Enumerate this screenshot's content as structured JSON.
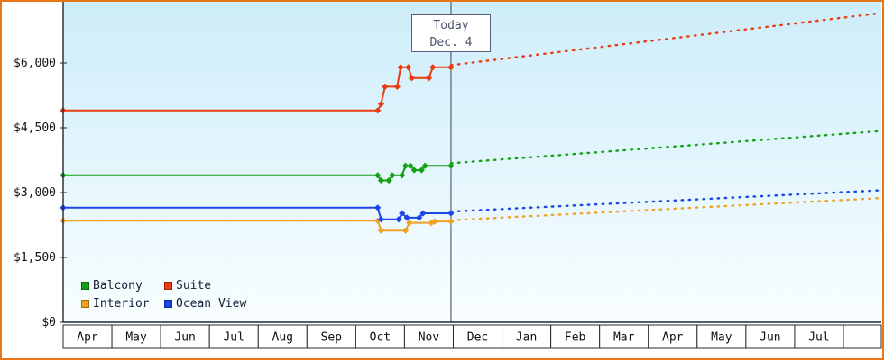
{
  "frame": {
    "border_color": "#e87612"
  },
  "chart_data": {
    "type": "line",
    "title": "",
    "xlabel": "",
    "ylabel": "",
    "ylim": [
      0,
      7400
    ],
    "grid": false,
    "plot": {
      "bg_top": "#cdedfa",
      "bg_bottom": "#f9feff",
      "axis_color": "#1e2836",
      "cell_border_color": "#2a2a2a",
      "tick_label_color": "#111111",
      "month_label_color": "#111111",
      "today_line_color": "#3a4456"
    },
    "y_axis": {
      "ticks": [
        0,
        1500,
        3000,
        4500,
        6000
      ],
      "labels": [
        "$0",
        "$1,500",
        "$3,000",
        "$4,500",
        "$6,000"
      ]
    },
    "x_axis": {
      "months": [
        "Apr",
        "May",
        "Jun",
        "Jul",
        "Aug",
        "Sep",
        "Oct",
        "Nov",
        "Dec",
        "Jan",
        "Feb",
        "Mar",
        "Apr",
        "May",
        "Jun",
        "Jul"
      ]
    },
    "today": {
      "line1": "Today",
      "line2": "Dec. 4",
      "month_index": 7.953
    },
    "series": [
      {
        "name": "Interior",
        "color": "#efa226",
        "history": [
          [
            0,
            2350
          ],
          [
            6.45,
            2350
          ],
          [
            6.52,
            2120
          ],
          [
            7.02,
            2120
          ],
          [
            7.1,
            2300
          ],
          [
            7.55,
            2300
          ],
          [
            7.62,
            2330
          ],
          [
            7.953,
            2330
          ]
        ],
        "projection": [
          [
            7.953,
            2360
          ],
          [
            16.72,
            2870
          ]
        ]
      },
      {
        "name": "Ocean View",
        "color": "#1c46e8",
        "history": [
          [
            0,
            2650
          ],
          [
            6.45,
            2650
          ],
          [
            6.52,
            2380
          ],
          [
            6.88,
            2380
          ],
          [
            6.95,
            2520
          ],
          [
            7.05,
            2420
          ],
          [
            7.3,
            2420
          ],
          [
            7.38,
            2520
          ],
          [
            7.953,
            2520
          ]
        ],
        "projection": [
          [
            7.953,
            2560
          ],
          [
            16.72,
            3050
          ]
        ]
      },
      {
        "name": "Balcony",
        "color": "#12a112",
        "history": [
          [
            0,
            3400
          ],
          [
            6.45,
            3400
          ],
          [
            6.52,
            3280
          ],
          [
            6.68,
            3280
          ],
          [
            6.75,
            3400
          ],
          [
            6.95,
            3400
          ],
          [
            7.02,
            3620
          ],
          [
            7.12,
            3620
          ],
          [
            7.2,
            3520
          ],
          [
            7.35,
            3520
          ],
          [
            7.42,
            3620
          ],
          [
            7.953,
            3620
          ]
        ],
        "projection": [
          [
            7.953,
            3680
          ],
          [
            16.72,
            4420
          ]
        ]
      },
      {
        "name": "Suite",
        "color": "#e83c12",
        "history": [
          [
            0,
            4900
          ],
          [
            6.45,
            4900
          ],
          [
            6.52,
            5050
          ],
          [
            6.6,
            5450
          ],
          [
            6.85,
            5450
          ],
          [
            6.92,
            5900
          ],
          [
            7.08,
            5900
          ],
          [
            7.15,
            5650
          ],
          [
            7.5,
            5650
          ],
          [
            7.58,
            5900
          ],
          [
            7.953,
            5900
          ]
        ],
        "projection": [
          [
            7.953,
            5950
          ],
          [
            16.72,
            7150
          ]
        ]
      }
    ]
  },
  "legend": {
    "items": [
      {
        "label": "Balcony",
        "color": "#12a112"
      },
      {
        "label": "Suite",
        "color": "#e83c12"
      },
      {
        "label": "Interior",
        "color": "#efa226"
      },
      {
        "label": "Ocean View",
        "color": "#1c46e8"
      }
    ]
  }
}
